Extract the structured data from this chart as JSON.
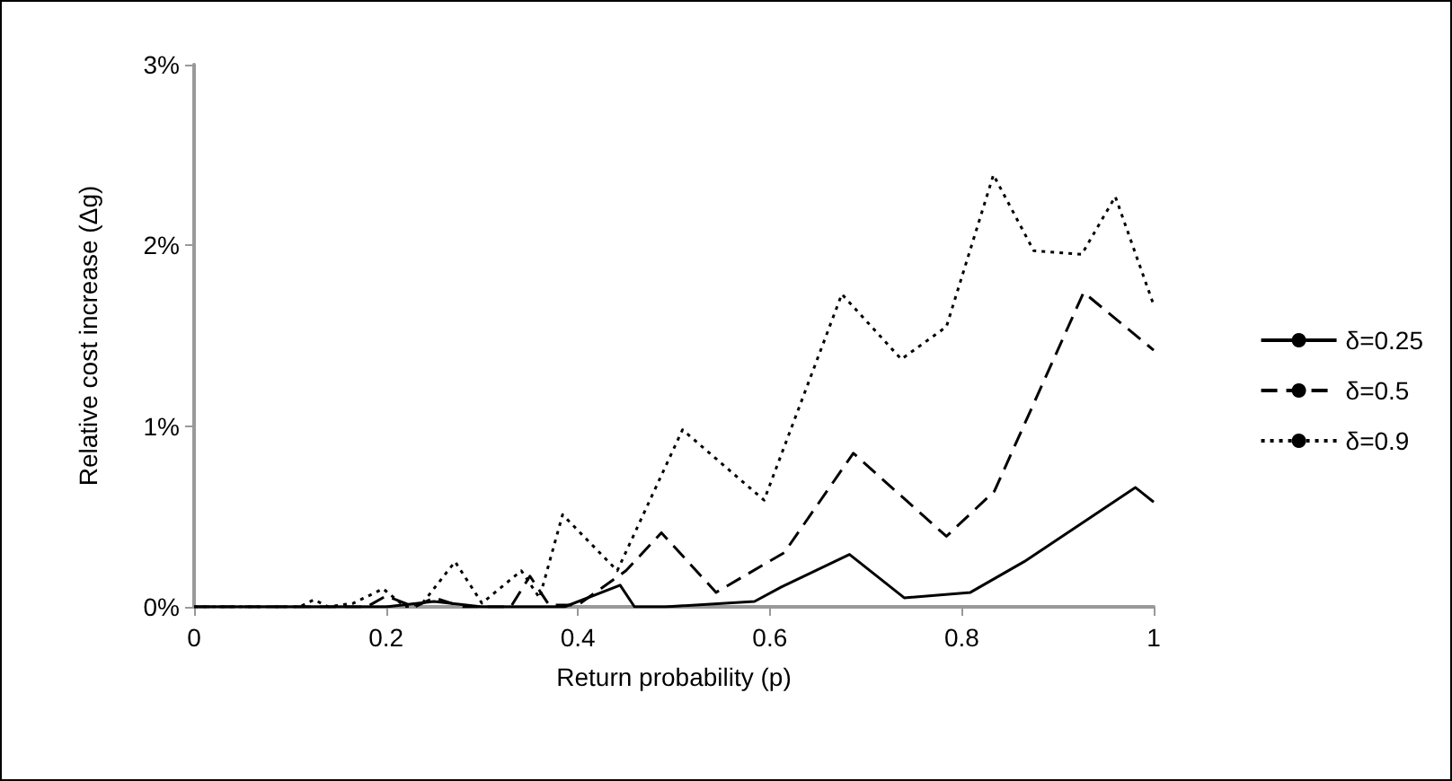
{
  "chart_data": {
    "type": "line",
    "xlabel": "Return probability (p)",
    "ylabel": "Relative cost increase (Δg)",
    "xlim": [
      0,
      1
    ],
    "xticks": [
      0,
      0.2,
      0.4,
      0.6,
      0.8,
      1
    ],
    "ylim": [
      0,
      3
    ],
    "yticks": [
      {
        "value": 0,
        "label": "0%"
      },
      {
        "value": 1,
        "label": "1%"
      },
      {
        "value": 2,
        "label": "2%"
      },
      {
        "value": 3,
        "label": "3%"
      }
    ],
    "grid": false,
    "legend": "right",
    "marker": "none",
    "series": [
      {
        "name": "δ=0.25",
        "color": "#000000",
        "line_style": "solid",
        "x": [
          0,
          0.2,
          0.25,
          0.3,
          0.386,
          0.444,
          0.459,
          0.491,
          0.584,
          0.612,
          0.683,
          0.74,
          0.809,
          0.865,
          0.981,
          1
        ],
        "values": [
          0,
          0,
          0.03,
          0,
          0,
          0.12,
          0,
          0,
          0.03,
          0.11,
          0.29,
          0.05,
          0.08,
          0.25,
          0.66,
          0.58
        ]
      },
      {
        "name": "δ=0.5",
        "color": "#000000",
        "line_style": "dashed",
        "x": [
          0,
          0.18,
          0.2,
          0.23,
          0.25,
          0.28,
          0.33,
          0.35,
          0.37,
          0.4,
          0.45,
          0.487,
          0.544,
          0.615,
          0.687,
          0.784,
          0.834,
          0.927,
          1
        ],
        "values": [
          0,
          0,
          0.06,
          0,
          0.05,
          0,
          0,
          0.17,
          0.01,
          0.01,
          0.2,
          0.41,
          0.08,
          0.3,
          0.85,
          0.39,
          0.64,
          1.74,
          1.42
        ]
      },
      {
        "name": "δ=0.9",
        "color": "#000000",
        "line_style": "dotted",
        "x": [
          0,
          0.11,
          0.125,
          0.14,
          0.166,
          0.197,
          0.22,
          0.238,
          0.272,
          0.3,
          0.341,
          0.36,
          0.384,
          0.441,
          0.509,
          0.594,
          0.675,
          0.737,
          0.784,
          0.833,
          0.875,
          0.925,
          0.96,
          1
        ],
        "values": [
          0,
          0,
          0.04,
          0,
          0.02,
          0.1,
          0,
          0.02,
          0.25,
          0.02,
          0.2,
          0.05,
          0.51,
          0.2,
          0.98,
          0.59,
          1.73,
          1.37,
          1.55,
          2.39,
          1.97,
          1.95,
          2.27,
          1.67
        ]
      }
    ]
  }
}
